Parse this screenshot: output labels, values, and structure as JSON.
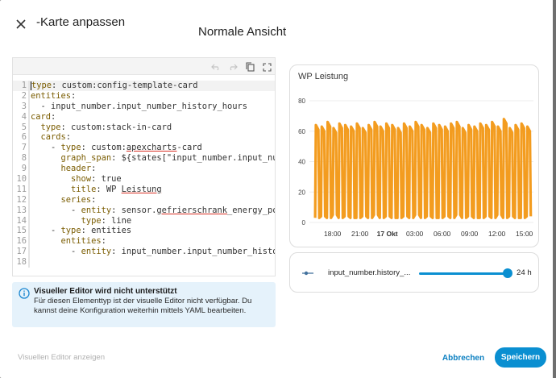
{
  "dialog": {
    "title": "-Karte anpassen",
    "view_title": "Normale Ansicht"
  },
  "editor": {
    "toolbar": {
      "icons": [
        "undo-icon",
        "redo-icon",
        "copy-icon",
        "fullscreen-icon"
      ]
    },
    "lines": [
      {
        "n": "1",
        "text": "type: custom:config-template-card"
      },
      {
        "n": "2",
        "text": "entities:"
      },
      {
        "n": "3",
        "text": "  - input_number.input_number_history_hours"
      },
      {
        "n": "4",
        "text": "card:"
      },
      {
        "n": "5",
        "text": "  type: custom:stack-in-card"
      },
      {
        "n": "6",
        "text": "  cards:"
      },
      {
        "n": "7",
        "text": "    - type: custom:apexcharts-card"
      },
      {
        "n": "8",
        "text": "      graph_span: ${states[\"input_number.input_number_"
      },
      {
        "n": "9",
        "text": "      header:"
      },
      {
        "n": "10",
        "text": "        show: true"
      },
      {
        "n": "11",
        "text": "        title: WP Leistung"
      },
      {
        "n": "12",
        "text": "      series:"
      },
      {
        "n": "13",
        "text": "        - entity: sensor.gefrierschrank_energy_powe"
      },
      {
        "n": "14",
        "text": "          type: line"
      },
      {
        "n": "15",
        "text": "    - type: entities"
      },
      {
        "n": "16",
        "text": "      entities:"
      },
      {
        "n": "17",
        "text": "        - entity: input_number.input_number_history_"
      },
      {
        "n": "18",
        "text": ""
      }
    ]
  },
  "info": {
    "title": "Visueller Editor wird nicht unterstützt",
    "text": "Für diesen Elementtyp ist der visuelle Editor nicht verfügbar. Du kannst deine Konfiguration weiterhin mittels YAML bearbeiten."
  },
  "chart_card": {
    "title": "WP Leistung"
  },
  "chart_data": {
    "type": "line",
    "title": "WP Leistung",
    "ylim": [
      0,
      80
    ],
    "y_ticks": [
      "0",
      "20",
      "40",
      "60",
      "80"
    ],
    "x_ticks": [
      "18:00",
      "21:00",
      "17 Okt",
      "03:00",
      "06:00",
      "09:00",
      "12:00",
      "15:00"
    ],
    "x_range_hours": [
      16,
      40
    ],
    "series": [
      {
        "color": "#f39c1f",
        "pattern": "oscillating between ~3 and ~65",
        "peaks": [
          64,
          63,
          66,
          62,
          65,
          64,
          63,
          65,
          62,
          64,
          66,
          63,
          65,
          64,
          62,
          65,
          63,
          66,
          64,
          62,
          65,
          64,
          63,
          65,
          66,
          62,
          64,
          63,
          65,
          64,
          66,
          63,
          68,
          62,
          64,
          65,
          63
        ],
        "troughs": [
          3,
          4,
          3,
          5,
          3,
          4,
          3,
          3,
          4,
          3,
          5,
          3,
          4,
          3,
          3,
          4,
          3,
          5,
          3,
          4,
          3,
          3,
          4,
          3,
          5,
          3,
          4,
          3,
          3,
          4,
          3,
          5,
          3,
          4,
          3,
          3,
          4
        ]
      }
    ],
    "grid": true,
    "legend": "none"
  },
  "slider": {
    "name": "input_number.history_...",
    "value": "24 h",
    "fraction": 0.96
  },
  "footer": {
    "visual_editor_label": "Visuellen Editor anzeigen",
    "cancel_label": "Abbrechen",
    "save_label": "Speichern"
  },
  "colors": {
    "accent": "#0a8fd1",
    "series": "#f39c1f"
  }
}
